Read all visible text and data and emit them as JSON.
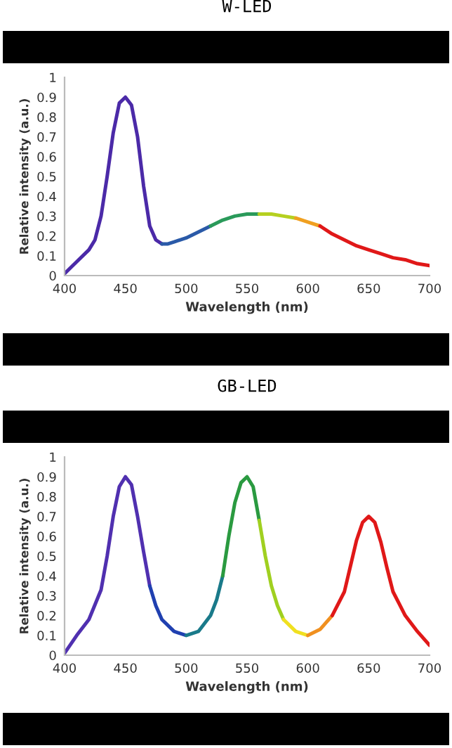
{
  "chart_data": [
    {
      "type": "line",
      "title": "W-LED",
      "xlabel": "Wavelength (nm)",
      "ylabel": "Relative intensity (a.u.)",
      "xlim": [
        400,
        700
      ],
      "xticks": [
        400,
        450,
        500,
        550,
        600,
        650,
        700
      ],
      "ylim": [
        0,
        1
      ],
      "yticks": [
        0,
        0.1,
        0.2,
        0.3,
        0.4,
        0.5,
        0.6,
        0.7,
        0.8,
        0.9,
        1
      ],
      "grid": false,
      "marker": "none",
      "line_style": "solid",
      "series": [
        {
          "color": "#4b2aa8",
          "x": [
            400,
            410,
            420,
            425,
            430,
            435,
            440,
            445,
            450,
            455,
            460,
            465,
            470,
            475,
            480
          ],
          "values": [
            0.01,
            0.07,
            0.13,
            0.18,
            0.3,
            0.5,
            0.72,
            0.87,
            0.9,
            0.86,
            0.7,
            0.45,
            0.25,
            0.18,
            0.16
          ]
        },
        {
          "color": "#2a5aa8",
          "x": [
            480,
            485,
            490,
            500,
            510,
            520
          ],
          "values": [
            0.16,
            0.16,
            0.17,
            0.19,
            0.22,
            0.25
          ]
        },
        {
          "color": "#2a9a5a",
          "x": [
            520,
            530,
            540,
            550,
            560
          ],
          "values": [
            0.25,
            0.28,
            0.3,
            0.31,
            0.31
          ]
        },
        {
          "color": "#b5d020",
          "x": [
            560,
            570,
            580,
            590
          ],
          "values": [
            0.31,
            0.31,
            0.3,
            0.29
          ]
        },
        {
          "color": "#f0a020",
          "x": [
            590,
            600,
            610
          ],
          "values": [
            0.29,
            0.27,
            0.25
          ]
        },
        {
          "color": "#e01818",
          "x": [
            610,
            620,
            630,
            640,
            650,
            660,
            670,
            680,
            690,
            700
          ],
          "values": [
            0.25,
            0.21,
            0.18,
            0.15,
            0.13,
            0.11,
            0.09,
            0.08,
            0.06,
            0.05
          ]
        }
      ]
    },
    {
      "type": "line",
      "title": "GB-LED",
      "xlabel": "Wavelength (nm)",
      "ylabel": "Relative intensity (a.u.)",
      "xlim": [
        400,
        700
      ],
      "xticks": [
        400,
        450,
        500,
        550,
        600,
        650,
        700
      ],
      "ylim": [
        0,
        1
      ],
      "yticks": [
        0,
        0.1,
        0.2,
        0.3,
        0.4,
        0.5,
        0.6,
        0.7,
        0.8,
        0.9,
        1
      ],
      "grid": false,
      "marker": "none",
      "line_style": "solid",
      "series": [
        {
          "color": "#5030b0",
          "x": [
            400,
            410,
            420,
            430,
            435,
            440,
            445,
            450,
            455,
            460,
            465,
            470
          ],
          "values": [
            0.01,
            0.1,
            0.18,
            0.33,
            0.5,
            0.7,
            0.85,
            0.9,
            0.86,
            0.7,
            0.52,
            0.35
          ]
        },
        {
          "color": "#2040b0",
          "x": [
            470,
            475,
            480,
            490,
            500
          ],
          "values": [
            0.35,
            0.25,
            0.18,
            0.12,
            0.1
          ]
        },
        {
          "color": "#1a7a8a",
          "x": [
            500,
            510,
            520,
            525,
            530
          ],
          "values": [
            0.1,
            0.12,
            0.2,
            0.28,
            0.4
          ]
        },
        {
          "color": "#2a9a40",
          "x": [
            530,
            535,
            540,
            545,
            550,
            555,
            560
          ],
          "values": [
            0.4,
            0.6,
            0.77,
            0.87,
            0.9,
            0.85,
            0.68
          ]
        },
        {
          "color": "#a0d020",
          "x": [
            560,
            565,
            570,
            575,
            580
          ],
          "values": [
            0.68,
            0.5,
            0.35,
            0.25,
            0.18
          ]
        },
        {
          "color": "#f0e020",
          "x": [
            580,
            590,
            600
          ],
          "values": [
            0.18,
            0.12,
            0.1
          ]
        },
        {
          "color": "#f09020",
          "x": [
            600,
            610,
            620
          ],
          "values": [
            0.1,
            0.13,
            0.2
          ]
        },
        {
          "color": "#e01818",
          "x": [
            620,
            630,
            635,
            640,
            645,
            650,
            655,
            660,
            665,
            670,
            675,
            680,
            690,
            700
          ],
          "values": [
            0.2,
            0.32,
            0.45,
            0.58,
            0.67,
            0.7,
            0.67,
            0.57,
            0.44,
            0.32,
            0.26,
            0.2,
            0.12,
            0.05
          ]
        }
      ]
    }
  ]
}
